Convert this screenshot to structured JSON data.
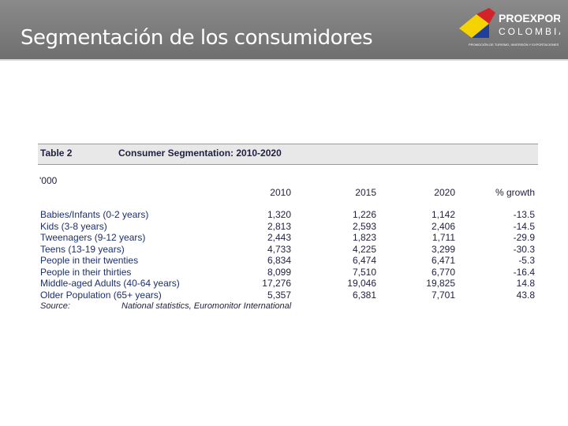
{
  "header": {
    "title": "Segmentación de los consumidores",
    "logo": {
      "name": "PROEXPORT",
      "country": "COLOMBIA",
      "tagline": "PROMOCIÓN DE TURISMO, INVERSIÓN Y EXPORTACIONES"
    }
  },
  "table": {
    "number": "Table 2",
    "title": "Consumer Segmentation: 2010-2020",
    "unit": "'000",
    "columns": [
      "2010",
      "2015",
      "2020",
      "% growth"
    ],
    "rows": [
      [
        "Babies/Infants (0-2 years)",
        "1,320",
        "1,226",
        "1,142",
        "-13.5"
      ],
      [
        "Kids (3-8 years)",
        "2,813",
        "2,593",
        "2,406",
        "-14.5"
      ],
      [
        "Tweenagers (9-12 years)",
        "2,443",
        "1,823",
        "1,711",
        "-29.9"
      ],
      [
        "Teens (13-19 years)",
        "4,733",
        "4,225",
        "3,299",
        "-30.3"
      ],
      [
        "People in their twenties",
        "6,834",
        "6,474",
        "6,471",
        "-5.3"
      ],
      [
        "People in their thirties",
        "8,099",
        "7,510",
        "6,770",
        "-16.4"
      ],
      [
        "Middle-aged Adults (40-64 years)",
        "17,276",
        "19,046",
        "19,825",
        "14.8"
      ],
      [
        "Older Population (65+ years)",
        "5,357",
        "6,381",
        "7,701",
        "43.8"
      ]
    ],
    "source_label": "Source:",
    "source": "National statistics, Euromonitor International"
  }
}
